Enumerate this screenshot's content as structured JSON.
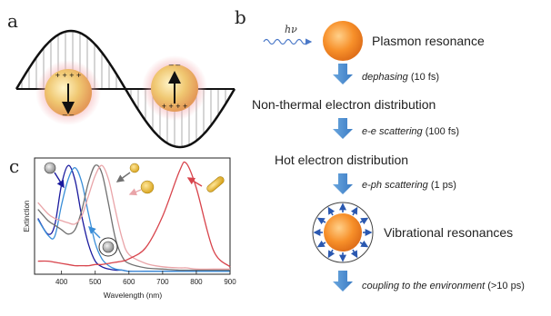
{
  "panel_a": {
    "label": "a",
    "charges_top": "+ + + +",
    "charges_bottom": "– –",
    "charges_right_top": "– –",
    "charges_right_bottom": "+ + + +"
  },
  "panel_b": {
    "label": "b",
    "photon": "hν",
    "steps": [
      "Plasmon resonance",
      "Non-thermal electron distribution",
      "Hot electron distribution",
      "Vibrational resonances"
    ],
    "processes": [
      {
        "name": "dephasing",
        "time": " (10 fs)"
      },
      {
        "name": "e-e scattering",
        "time": " (100 fs)"
      },
      {
        "name": "e-ph scattering",
        "time": " (1 ps)"
      },
      {
        "name": "coupling to the environment",
        "time": " (>10 ps)"
      }
    ]
  },
  "panel_c": {
    "label": "c",
    "colors": {
      "navy": "#1a1a9e",
      "blue": "#3a8ed8",
      "gray": "#707070",
      "pink": "#e9a4a8",
      "red": "#d8444c"
    }
  },
  "chart_data": {
    "type": "line",
    "title": "",
    "xlabel": "Wavelength (nm)",
    "ylabel": "Extinction",
    "xlim": [
      320,
      900
    ],
    "ylim": [
      0,
      1
    ],
    "xticks": [
      400,
      500,
      600,
      700,
      800,
      900
    ],
    "x": [
      330,
      360,
      380,
      400,
      420,
      440,
      460,
      480,
      500,
      520,
      540,
      560,
      580,
      600,
      650,
      700,
      750,
      770,
      800,
      850,
      900
    ],
    "series": [
      {
        "color": "#1a1a9e",
        "values": [
          0.48,
          0.34,
          0.42,
          0.78,
          0.95,
          0.82,
          0.5,
          0.25,
          0.1,
          0.05,
          0.03,
          0.02,
          0.02,
          0.01,
          0.01,
          0.01,
          0.01,
          0.01,
          0.01,
          0.01,
          0.01
        ]
      },
      {
        "color": "#3a8ed8",
        "values": [
          0.47,
          0.33,
          0.32,
          0.6,
          0.83,
          0.93,
          0.8,
          0.52,
          0.26,
          0.12,
          0.06,
          0.03,
          0.02,
          0.01,
          0.01,
          0.01,
          0.01,
          0.01,
          0.01,
          0.01,
          0.01
        ]
      },
      {
        "color": "#707070",
        "values": [
          0.56,
          0.46,
          0.42,
          0.38,
          0.34,
          0.38,
          0.55,
          0.8,
          0.95,
          0.88,
          0.6,
          0.3,
          0.14,
          0.08,
          0.04,
          0.03,
          0.02,
          0.02,
          0.02,
          0.02,
          0.02
        ]
      },
      {
        "color": "#e9a4a8",
        "values": [
          0.62,
          0.52,
          0.48,
          0.46,
          0.44,
          0.43,
          0.5,
          0.68,
          0.86,
          0.95,
          0.82,
          0.55,
          0.3,
          0.16,
          0.08,
          0.05,
          0.04,
          0.04,
          0.03,
          0.03,
          0.03
        ]
      },
      {
        "color": "#d8444c",
        "values": [
          0.1,
          0.1,
          0.09,
          0.08,
          0.07,
          0.06,
          0.06,
          0.06,
          0.07,
          0.07,
          0.08,
          0.09,
          0.1,
          0.12,
          0.22,
          0.5,
          0.9,
          0.97,
          0.75,
          0.2,
          0.05
        ]
      }
    ]
  }
}
